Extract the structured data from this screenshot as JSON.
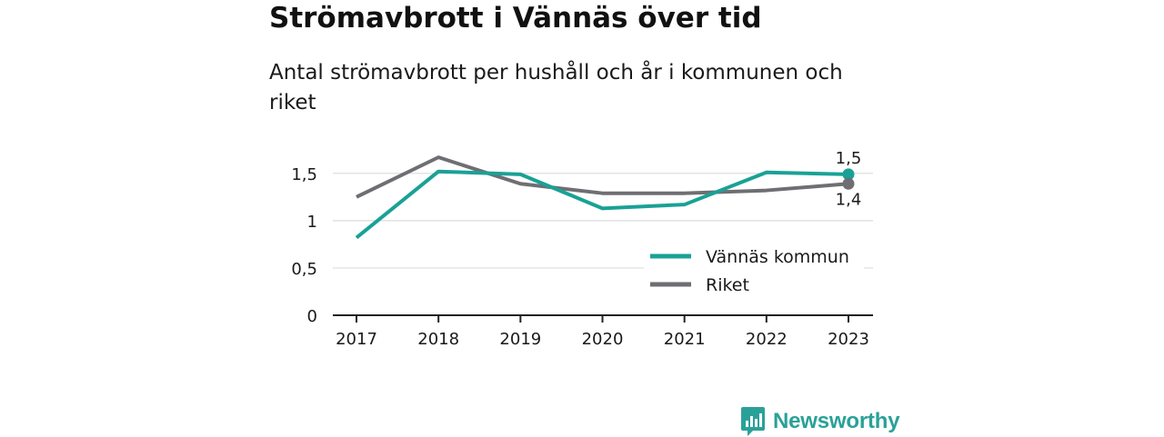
{
  "page": {
    "title": "Strömavbrott i Vännäs över tid",
    "subtitle": "Antal strömavbrott per hushåll och år i kommunen och riket",
    "brand": "Newsworthy"
  },
  "chart_data": {
    "type": "line",
    "title": "Strömavbrott i Vännäs över tid",
    "subtitle": "Antal strömavbrott per hushåll och år i kommunen och riket",
    "x": [
      "2017",
      "2018",
      "2019",
      "2020",
      "2021",
      "2022",
      "2023"
    ],
    "ylim": [
      0,
      1.7
    ],
    "yticks": [
      0,
      0.5,
      1,
      1.5
    ],
    "ytick_labels": [
      "0",
      "0,5",
      "1",
      "1,5"
    ],
    "grid": true,
    "legend_position": "bottom-right",
    "series": [
      {
        "name": "Vännäs kommun",
        "color": "#1aa196",
        "values": [
          0.82,
          1.52,
          1.49,
          1.13,
          1.17,
          1.51,
          1.49
        ],
        "end_label": "1,5"
      },
      {
        "name": "Riket",
        "color": "#6f6e73",
        "values": [
          1.25,
          1.67,
          1.39,
          1.29,
          1.29,
          1.32,
          1.39
        ],
        "end_label": "1,4"
      }
    ]
  }
}
